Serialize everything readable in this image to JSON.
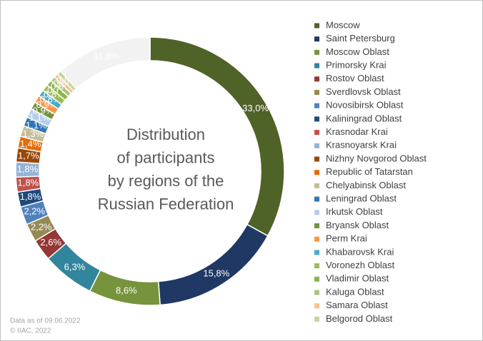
{
  "chart_data": {
    "type": "donut",
    "title_lines": [
      "Distribution",
      "of participants",
      "by regions of the",
      "Russian Federation"
    ],
    "categories": [
      "Moscow",
      "Saint Petersburg",
      "Moscow Oblast",
      "Primorsky Krai",
      "Rostov Oblast",
      "Sverdlovsk Oblast",
      "Novosibirsk Oblast",
      "Kaliningrad Oblast",
      "Krasnodar Krai",
      "Krasnoyarsk Krai",
      "Nizhny Novgorod Oblast",
      "Republic of Tatarstan",
      "Chelyabinsk Oblast",
      "Leningrad Oblast",
      "Irkutsk Oblast",
      "Bryansk Oblast",
      "Perm Krai",
      "Khabarovsk Krai",
      "Voronezh Oblast",
      "Vladimir Oblast",
      "Kaluga Oblast",
      "Samara Oblast",
      "Belgorod Oblast",
      null
    ],
    "values": [
      33.0,
      15.8,
      8.6,
      6.3,
      2.6,
      2.2,
      2.2,
      1.8,
      1.8,
      1.8,
      1.7,
      1.4,
      1.3,
      1.1,
      1.1,
      0.9,
      0.9,
      0.8,
      0.8,
      0.7,
      0.6,
      0.5,
      0.5,
      11.6
    ],
    "value_labels": [
      "33,0%",
      "15,8%",
      "8,6%",
      "6,3%",
      "2,6%",
      "2,2%",
      "2,2%",
      "1,8%",
      "1,8%",
      "1,8%",
      "1,7%",
      "1,4%",
      "1,3%",
      "1,1%",
      "1,1%",
      "0,9%",
      "0,9%",
      "0,8%",
      "0,8%",
      "0,7%",
      "0,6%",
      "0,5%",
      "0,5%",
      "11,6%"
    ],
    "colors": [
      "#4f6228",
      "#1f3864",
      "#77933c",
      "#31859c",
      "#953735",
      "#948a54",
      "#4f81bd",
      "#1f497d",
      "#c0504d",
      "#95b3d7",
      "#984807",
      "#e46c0a",
      "#c4bd97",
      "#2e75b6",
      "#b7cde8",
      "#76923c",
      "#f79646",
      "#4bacc6",
      "#9bbb59",
      "#8eb44a",
      "#a9c47f",
      "#fac090",
      "#c3d69b",
      "#f2f2f2"
    ],
    "footnotes": [
      "Data as of 09.06.2022",
      "© IIAC, 2022"
    ]
  }
}
